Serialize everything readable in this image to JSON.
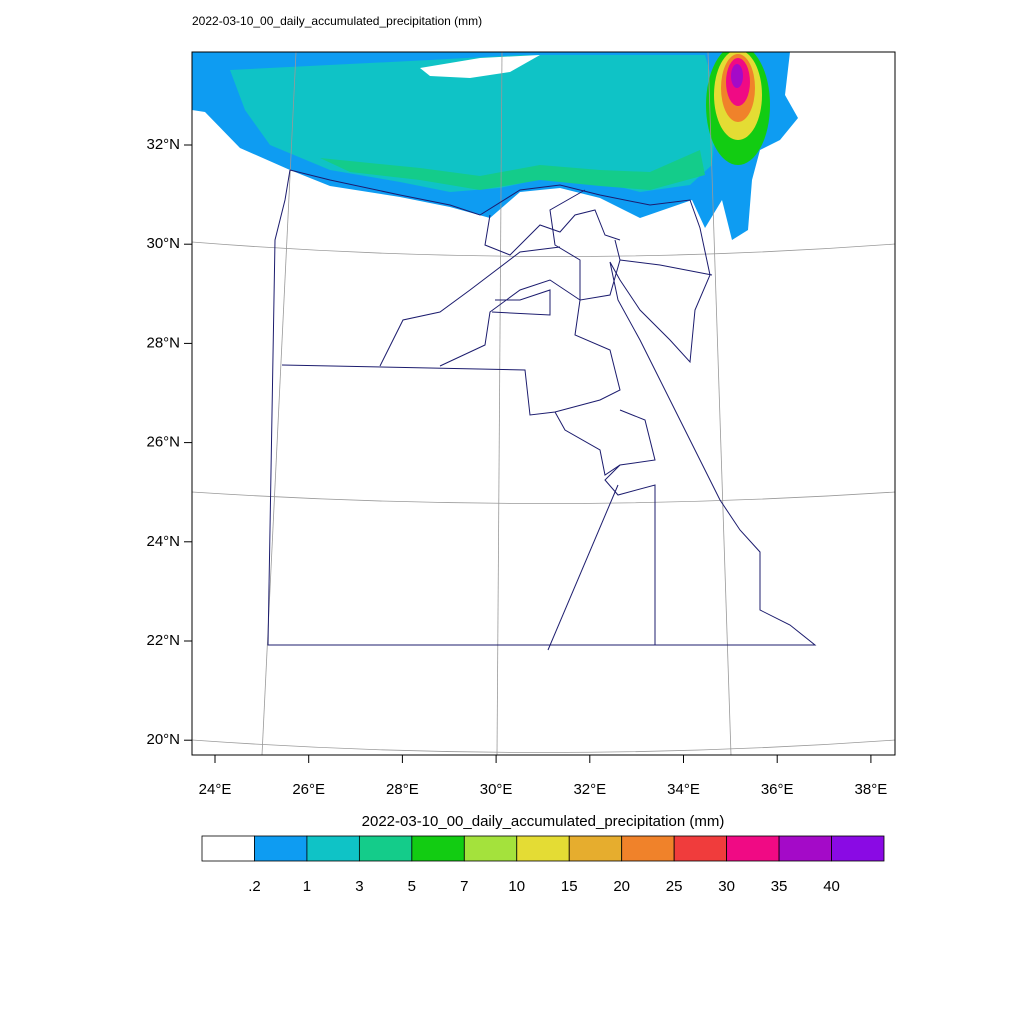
{
  "title": "2022-03-10_00_daily_accumulated_precipitation   (mm)",
  "lat_ticks": [
    "32°N",
    "30°N",
    "28°N",
    "26°N",
    "24°N",
    "22°N",
    "20°N"
  ],
  "lon_ticks": [
    "24°E",
    "26°E",
    "28°E",
    "30°E",
    "32°E",
    "34°E",
    "36°E",
    "38°E"
  ],
  "colorbar": {
    "title": "2022-03-10_00_daily_accumulated_precipitation  (mm)",
    "labels": [
      ".2",
      "1",
      "3",
      "5",
      "7",
      "10",
      "15",
      "20",
      "25",
      "30",
      "35",
      "40"
    ],
    "colors": [
      "#ffffff",
      "#0e9cf2",
      "#0fc3c6",
      "#14cc8a",
      "#12cc12",
      "#a4e23c",
      "#e4dc34",
      "#e6ad2e",
      "#f0822a",
      "#f03c3c",
      "#f00a84",
      "#a40ac8",
      "#8a0ae4"
    ]
  }
}
